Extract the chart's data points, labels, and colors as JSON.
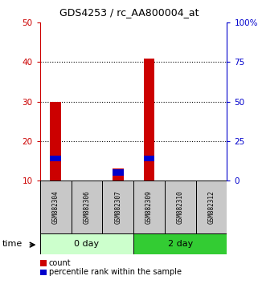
{
  "title": "GDS4253 / rc_AA800004_at",
  "samples": [
    "GSM882304",
    "GSM882306",
    "GSM882307",
    "GSM882309",
    "GSM882310",
    "GSM882312"
  ],
  "groups": [
    {
      "label": "0 day",
      "indices": [
        0,
        1,
        2
      ]
    },
    {
      "label": "2 day",
      "indices": [
        3,
        4,
        5
      ]
    }
  ],
  "count_values": [
    30,
    10,
    13,
    41,
    10,
    10
  ],
  "percentile_values": [
    15.5,
    0,
    12,
    15.5,
    0,
    0
  ],
  "percentile_heights": [
    1.5,
    0,
    1.5,
    1.5,
    0,
    0
  ],
  "bar_bottom": 10,
  "ylim_left": [
    10,
    50
  ],
  "ylim_right": [
    0,
    100
  ],
  "yticks_left": [
    10,
    20,
    30,
    40,
    50
  ],
  "ytick_labels_left": [
    "10",
    "20",
    "30",
    "40",
    "50"
  ],
  "yticks_right_vals": [
    0,
    25,
    50,
    75,
    100
  ],
  "ytick_labels_right": [
    "0",
    "25",
    "50",
    "75",
    "100%"
  ],
  "count_color": "#CC0000",
  "percentile_color": "#0000CC",
  "sample_box_color": "#C8C8C8",
  "group_box_light": "#CCFFCC",
  "group_box_dark": "#33CC33",
  "left_axis_color": "#CC0000",
  "right_axis_color": "#0000CC",
  "time_label": "time",
  "legend_count": "count",
  "legend_percentile": "percentile rank within the sample",
  "bar_width": 0.35
}
